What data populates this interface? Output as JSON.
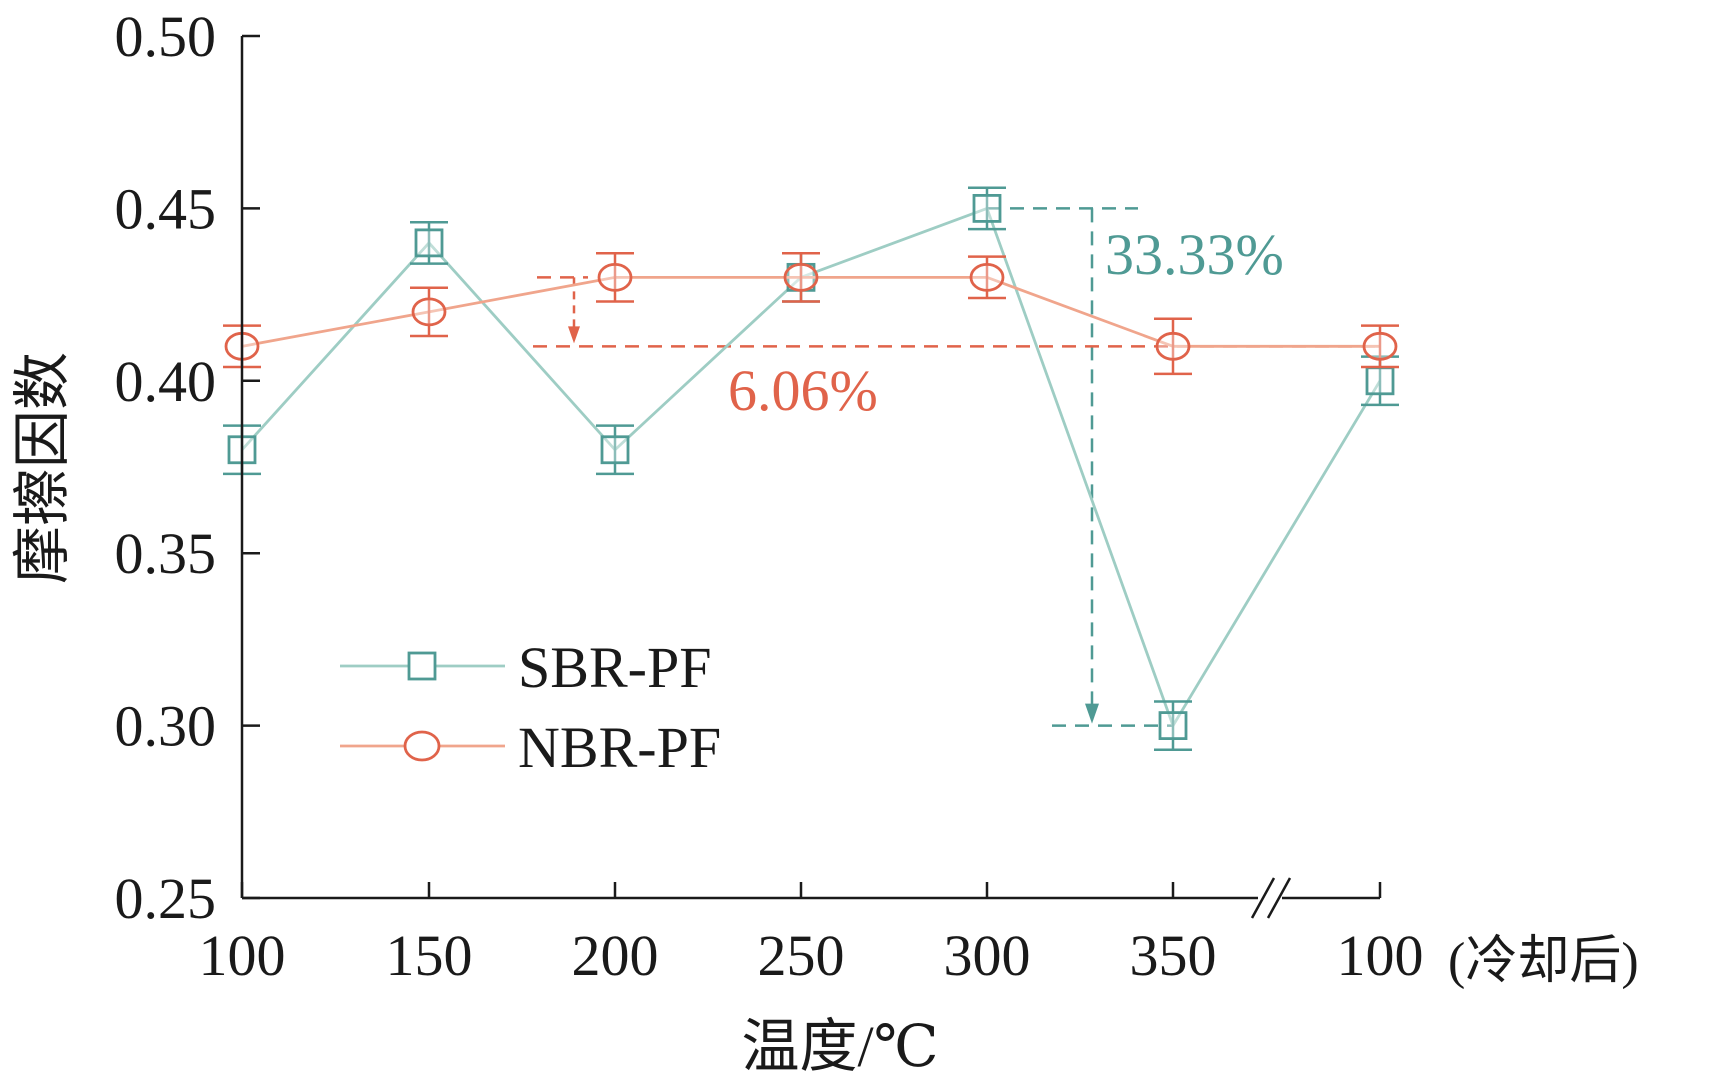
{
  "chart_data": {
    "type": "line",
    "categories": [
      "100",
      "150",
      "200",
      "250",
      "300",
      "350",
      "100"
    ],
    "last_category_suffix": "(冷却后)",
    "xlabel": "温度/℃",
    "ylabel": "摩擦因数",
    "ylim": [
      0.25,
      0.5
    ],
    "yticks": [
      "0.25",
      "0.30",
      "0.35",
      "0.40",
      "0.45",
      "0.50"
    ],
    "axis_break": "between 350 and 100 (冷却后)",
    "grid": false,
    "legend_position": "lower-left",
    "series": [
      {
        "name": "SBR-PF",
        "marker": "square",
        "line_color": "#9ecdc4",
        "marker_color": "#4f9a94",
        "values": [
          0.38,
          0.44,
          0.38,
          0.43,
          0.45,
          0.3,
          0.4
        ],
        "errors": [
          0.007,
          0.006,
          0.007,
          0.007,
          0.006,
          0.007,
          0.007
        ]
      },
      {
        "name": "NBR-PF",
        "marker": "circle",
        "line_color": "#f0a58c",
        "marker_color": "#e0634a",
        "values": [
          0.41,
          0.42,
          0.43,
          0.43,
          0.43,
          0.41,
          0.41
        ],
        "errors": [
          0.006,
          0.007,
          0.007,
          0.007,
          0.006,
          0.008,
          0.006
        ]
      }
    ],
    "annotations": [
      {
        "text": "33.33%",
        "color": "#4f9a94",
        "from_value": 0.45,
        "to_value": 0.3
      },
      {
        "text": "6.06%",
        "color": "#e0634a",
        "from_value": 0.43,
        "to_value": 0.41
      }
    ]
  }
}
